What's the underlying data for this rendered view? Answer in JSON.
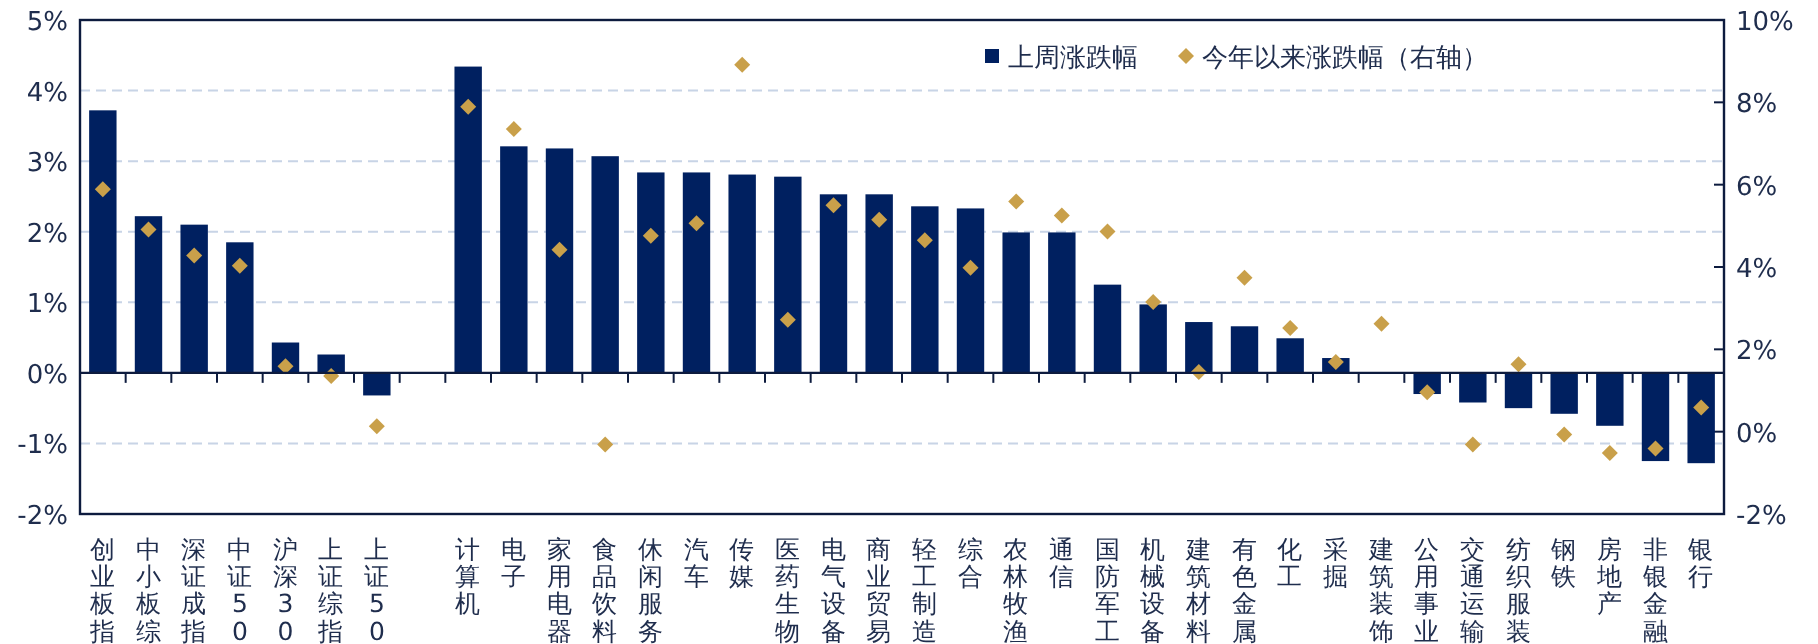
{
  "chart_data": {
    "type": "bar",
    "categories": [
      "创业板指",
      "中小板综",
      "深证成指",
      "中证500",
      "沪深300",
      "上证综指",
      "上证50",
      null,
      "计算机",
      "电子",
      "家用电器",
      "食品饮料",
      "休闲服务",
      "汽车",
      "传媒",
      "医药生物",
      "电气设备",
      "商业贸易",
      "轻工制造",
      "综合",
      "农林牧渔",
      "通信",
      "国防军工",
      "机械设备",
      "建筑材料",
      "有色金属",
      "化工",
      "采掘",
      "建筑装饰",
      "公用事业",
      "交通运输",
      "纺织服装",
      "钢铁",
      "房地产",
      "非银金融",
      "银行"
    ],
    "series": [
      {
        "name": "上周涨跌幅",
        "color": "#002060",
        "values": [
          3.72,
          2.22,
          2.1,
          1.85,
          0.43,
          0.26,
          -0.32,
          null,
          4.34,
          3.21,
          3.18,
          3.07,
          2.84,
          2.84,
          2.81,
          2.78,
          2.53,
          2.53,
          2.36,
          2.33,
          1.99,
          1.99,
          1.25,
          0.97,
          0.72,
          0.66,
          0.49,
          0.21,
          0,
          -0.3,
          -0.42,
          -0.5,
          -0.58,
          -0.75,
          -1.25,
          -1.28
        ]
      },
      {
        "name": "今年以来涨跌幅（右轴）",
        "type": "scatter",
        "axis": "y2",
        "marker": "diamond",
        "color": "#c9a04a",
        "values": [
          5.89,
          4.91,
          4.28,
          4.03,
          1.59,
          1.35,
          0.13,
          null,
          7.89,
          7.35,
          4.42,
          -0.31,
          4.76,
          5.06,
          8.91,
          2.72,
          5.5,
          5.15,
          4.65,
          3.98,
          5.59,
          5.25,
          4.86,
          3.15,
          1.45,
          3.74,
          2.52,
          1.69,
          2.62,
          0.96,
          -0.31,
          1.64,
          -0.07,
          -0.52,
          -0.41,
          0.59
        ]
      }
    ],
    "ylim": [
      -2,
      5
    ],
    "yticks": [
      {
        "value": -2,
        "label": "-2%"
      },
      {
        "value": -1,
        "label": "-1%"
      },
      {
        "value": 0,
        "label": "0%"
      },
      {
        "value": 1,
        "label": "1%"
      },
      {
        "value": 2,
        "label": "2%"
      },
      {
        "value": 3,
        "label": "3%"
      },
      {
        "value": 4,
        "label": "4%"
      },
      {
        "value": 5,
        "label": "5%"
      }
    ],
    "y2lim": [
      -2,
      10
    ],
    "y2ticks": [
      {
        "value": -2,
        "label": "-2%"
      },
      {
        "value": 0,
        "label": "0%"
      },
      {
        "value": 2,
        "label": "2%"
      },
      {
        "value": 4,
        "label": "4%"
      },
      {
        "value": 6,
        "label": "6%"
      },
      {
        "value": 8,
        "label": "8%"
      },
      {
        "value": 10,
        "label": "10%"
      }
    ],
    "grid": "y",
    "legend": "top right"
  }
}
